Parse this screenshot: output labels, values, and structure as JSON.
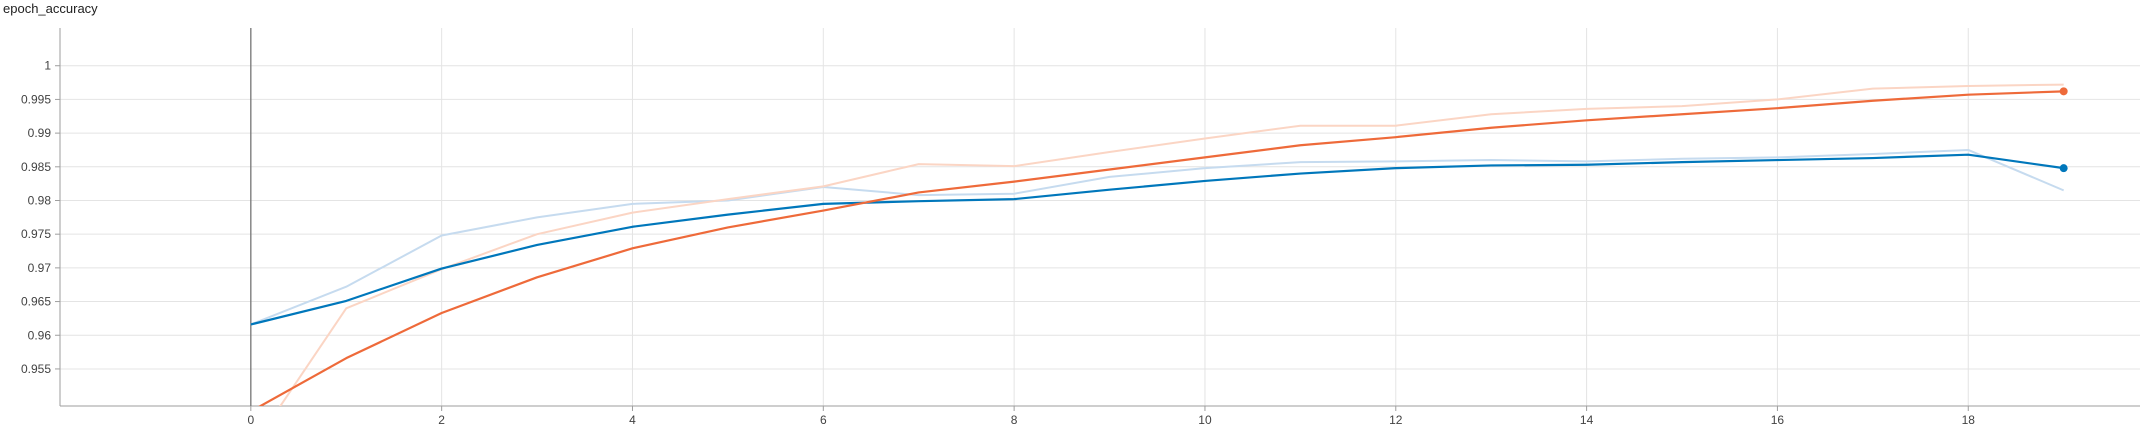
{
  "chart_data": {
    "type": "line",
    "title": "epoch_accuracy",
    "xlabel": "",
    "ylabel": "",
    "xlim": [
      -2,
      19.8
    ],
    "ylim": [
      0.9495,
      1.0056
    ],
    "x_ticks": [
      0,
      2,
      4,
      6,
      8,
      10,
      12,
      14,
      16,
      18
    ],
    "y_ticks": [
      0.955,
      0.96,
      0.965,
      0.97,
      0.975,
      0.98,
      0.985,
      0.99,
      0.995,
      1
    ],
    "y_tick_labels": [
      "0.955",
      "0.96",
      "0.965",
      "0.97",
      "0.975",
      "0.98",
      "0.985",
      "0.99",
      "0.995",
      "1"
    ],
    "grid": true,
    "x": [
      0,
      1,
      2,
      3,
      4,
      5,
      6,
      7,
      8,
      9,
      10,
      11,
      12,
      13,
      14,
      15,
      16,
      17,
      18,
      19
    ],
    "series": [
      {
        "color": "#0077bb",
        "raw_color": "#c6dbef",
        "values": [
          0.9616,
          0.9651,
          0.9699,
          0.9734,
          0.9761,
          0.9779,
          0.9795,
          0.9799,
          0.9802,
          0.9816,
          0.9829,
          0.984,
          0.9848,
          0.9852,
          0.9853,
          0.9857,
          0.986,
          0.9863,
          0.9868,
          0.9848
        ],
        "raw_values": [
          0.9616,
          0.9672,
          0.9748,
          0.9775,
          0.9795,
          0.98,
          0.982,
          0.9808,
          0.981,
          0.9835,
          0.9848,
          0.9857,
          0.9858,
          0.986,
          0.9858,
          0.9862,
          0.9864,
          0.9869,
          0.9875,
          0.9815
        ]
      },
      {
        "color": "#ee6a3a",
        "raw_color": "#fbd5c4",
        "values": [
          0.9487,
          0.9566,
          0.9633,
          0.9686,
          0.9729,
          0.976,
          0.9785,
          0.9812,
          0.9828,
          0.9846,
          0.9864,
          0.9882,
          0.9894,
          0.9908,
          0.9919,
          0.9928,
          0.9937,
          0.9948,
          0.9957,
          0.9962
        ],
        "raw_values": [
          0.943,
          0.964,
          0.9698,
          0.975,
          0.9782,
          0.9802,
          0.9821,
          0.9854,
          0.9851,
          0.9872,
          0.9892,
          0.9911,
          0.9911,
          0.9928,
          0.9936,
          0.994,
          0.995,
          0.9966,
          0.997,
          0.9972
        ]
      }
    ]
  }
}
